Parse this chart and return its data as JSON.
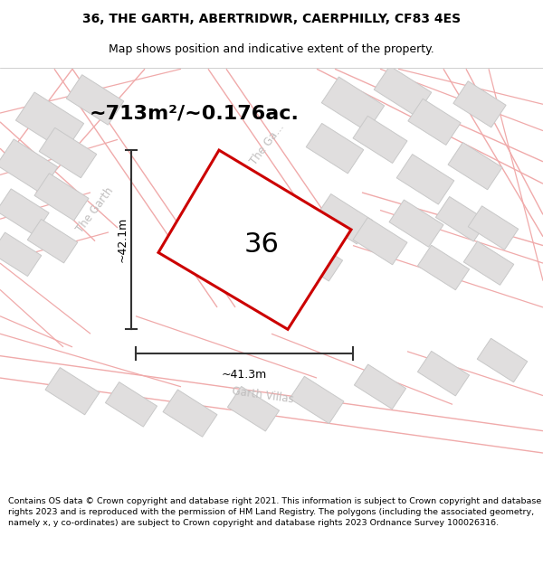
{
  "title_line1": "36, THE GARTH, ABERTRIDWR, CAERPHILLY, CF83 4ES",
  "title_line2": "Map shows position and indicative extent of the property.",
  "area_text": "~713m²/~0.176ac.",
  "plot_number": "36",
  "dim_width": "~41.3m",
  "dim_height": "~42.1m",
  "footer_text": "Contains OS data © Crown copyright and database right 2021. This information is subject to Crown copyright and database rights 2023 and is reproduced with the permission of HM Land Registry. The polygons (including the associated geometry, namely x, y co-ordinates) are subject to Crown copyright and database rights 2023 Ordnance Survey 100026316.",
  "bg_color": "#faf8f8",
  "plot_color": "#cc0000",
  "road_color": "#f0aaaa",
  "building_color": "#e0dede",
  "building_edge": "#c8c8c8",
  "street_label_color": "#c0bebe",
  "dim_color": "#333333",
  "title_fontsize": 10,
  "subtitle_fontsize": 9,
  "area_fontsize": 16,
  "plot_label_fontsize": 22,
  "footer_fontsize": 6.8,
  "street_fontsize": 8.5,
  "road_lw": 1.2
}
